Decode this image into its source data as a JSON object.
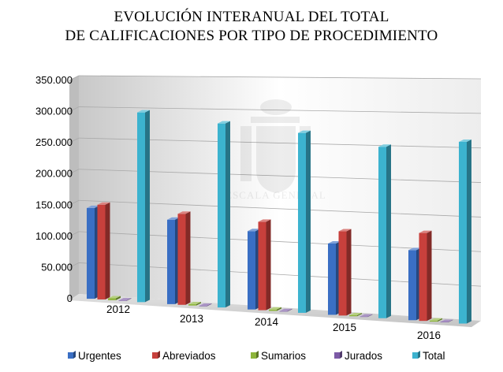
{
  "chart_data": {
    "type": "bar",
    "title_lines": [
      "EVOLUCIÓN INTERANUAL DEL TOTAL",
      "DE CALIFICACIONES POR TIPO DE PROCEDIMIENTO"
    ],
    "xlabel": "",
    "ylabel": "",
    "categories": [
      "2012",
      "2013",
      "2014",
      "2015",
      "2016"
    ],
    "y_ticks": [
      "0",
      "50.000",
      "100.000",
      "150.000",
      "200.000",
      "250.000",
      "300.000",
      "350.000"
    ],
    "ylim": [
      0,
      350000
    ],
    "grid": true,
    "legend_position": "bottom",
    "series": [
      {
        "name": "Urgentes",
        "color": "#3a6fc4",
        "values": [
          145000,
          132000,
          120000,
          107000,
          103000
        ]
      },
      {
        "name": "Abreviados",
        "color": "#c8403c",
        "values": [
          151000,
          142000,
          135000,
          126000,
          129000
        ]
      },
      {
        "name": "Sumarios",
        "color": "#8db53a",
        "values": [
          3000,
          2000,
          2000,
          1500,
          1500
        ]
      },
      {
        "name": "Jurados",
        "color": "#7c5aa6",
        "values": [
          800,
          700,
          700,
          600,
          600
        ]
      },
      {
        "name": "Total",
        "color": "#3cb3cf",
        "values": [
          299000,
          284000,
          272000,
          254000,
          264000
        ]
      }
    ],
    "watermark_text": "ESCALA GENERAL"
  }
}
